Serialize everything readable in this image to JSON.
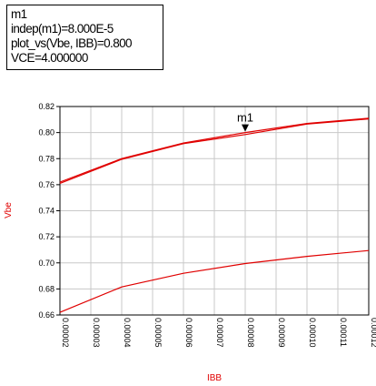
{
  "marker_readout": {
    "line1": "m1",
    "line2": "indep(m1)=8.000E-5",
    "line3": "plot_vs(Vbe, IBB)=0.800",
    "line4": "VCE=4.000000"
  },
  "chart_data": {
    "type": "line",
    "xlabel": "IBB",
    "ylabel": "Vbe",
    "xlim": [
      2e-05,
      0.00012
    ],
    "ylim": [
      0.66,
      0.82
    ],
    "x_ticks": [
      "0.00002",
      "0.00003",
      "0.00004",
      "0.00005",
      "0.00006",
      "0.00007",
      "0.00008",
      "0.00009",
      "0.00010",
      "0.00011",
      "0.00012"
    ],
    "y_ticks": [
      "0.66",
      "0.68",
      "0.70",
      "0.72",
      "0.74",
      "0.76",
      "0.78",
      "0.80",
      "0.82"
    ],
    "grid": true,
    "series": [
      {
        "x": [
          2e-05,
          4e-05,
          6e-05,
          8e-05,
          0.0001,
          0.00012
        ],
        "values": [
          0.762,
          0.78,
          0.792,
          0.8,
          0.807,
          0.811
        ]
      },
      {
        "x": [
          2e-05,
          4e-05,
          6e-05,
          8e-05,
          0.0001,
          0.00012
        ],
        "values": [
          0.761,
          0.7795,
          0.7915,
          0.7985,
          0.8065,
          0.8105
        ]
      },
      {
        "x": [
          2e-05,
          4e-05,
          6e-05,
          8e-05,
          0.0001,
          0.00012
        ],
        "values": [
          0.662,
          0.6815,
          0.692,
          0.6995,
          0.705,
          0.7095
        ]
      }
    ],
    "marker": {
      "label": "m1",
      "x": 8e-05,
      "y": 0.8
    },
    "colors": {
      "line": "#e00000",
      "grid": "#c8c8c8",
      "axis_label": "#e00000"
    }
  }
}
